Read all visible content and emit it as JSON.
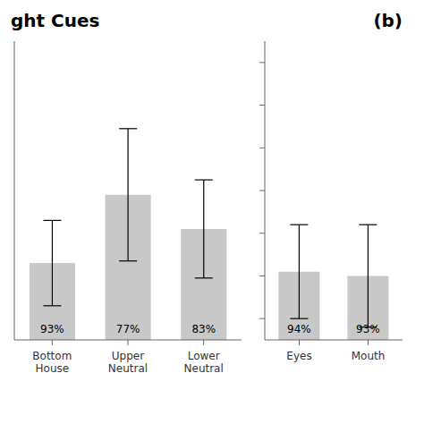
{
  "chart_data": [
    {
      "type": "bar",
      "title": "ght Cues",
      "categories": [
        "Bottom\nHouse",
        "Upper\nNeutral",
        "Lower\nNeutral"
      ],
      "values": [
        480,
        640,
        560
      ],
      "errors": [
        100,
        155,
        115
      ],
      "annotations": [
        "93%",
        "77%",
        "83%"
      ],
      "color": "#c8c8c8",
      "ylim": [
        300,
        1000
      ],
      "tick_labels": "x",
      "grid": false
    },
    {
      "type": "bar",
      "title": "(b)",
      "categories": [
        "Eyes",
        "Mouth"
      ],
      "values": [
        460,
        450
      ],
      "errors": [
        110,
        120
      ],
      "annotations": [
        "94%",
        "93%"
      ],
      "color": "#c8c8c8",
      "ylim": [
        300,
        1000
      ],
      "yticks": [
        350,
        450,
        550,
        650,
        750,
        850,
        950
      ],
      "tick_labels": "x",
      "grid": false
    }
  ]
}
